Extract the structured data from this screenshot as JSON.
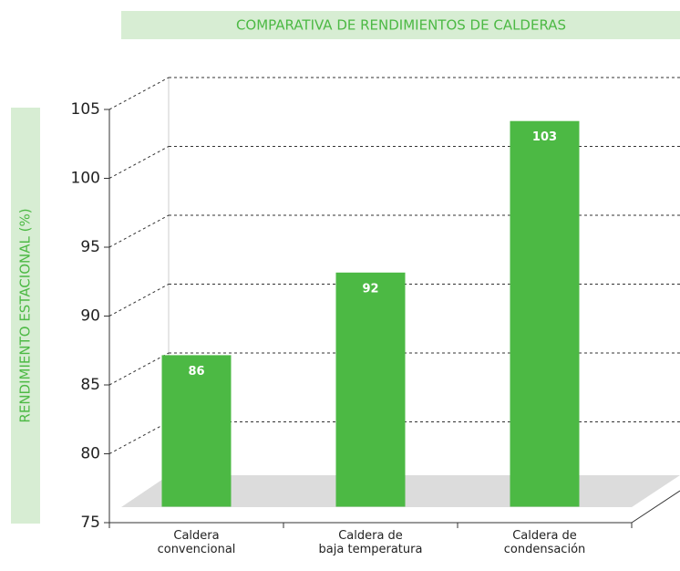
{
  "chart_data": {
    "type": "bar",
    "title": "COMPARATIVA DE RENDIMIENTOS DE CALDERAS",
    "y_label": "RENDIMIENTO ESTACIONAL (%)",
    "categories": [
      "Caldera\nconvencional",
      "Caldera de\nbaja temperatura",
      "Caldera de\ncondensación"
    ],
    "values": [
      86,
      92,
      103
    ],
    "color": "#4cb944",
    "ylim": [
      75,
      105
    ],
    "yticks": [
      75,
      80,
      85,
      90,
      95,
      100,
      105
    ],
    "grid": true
  }
}
